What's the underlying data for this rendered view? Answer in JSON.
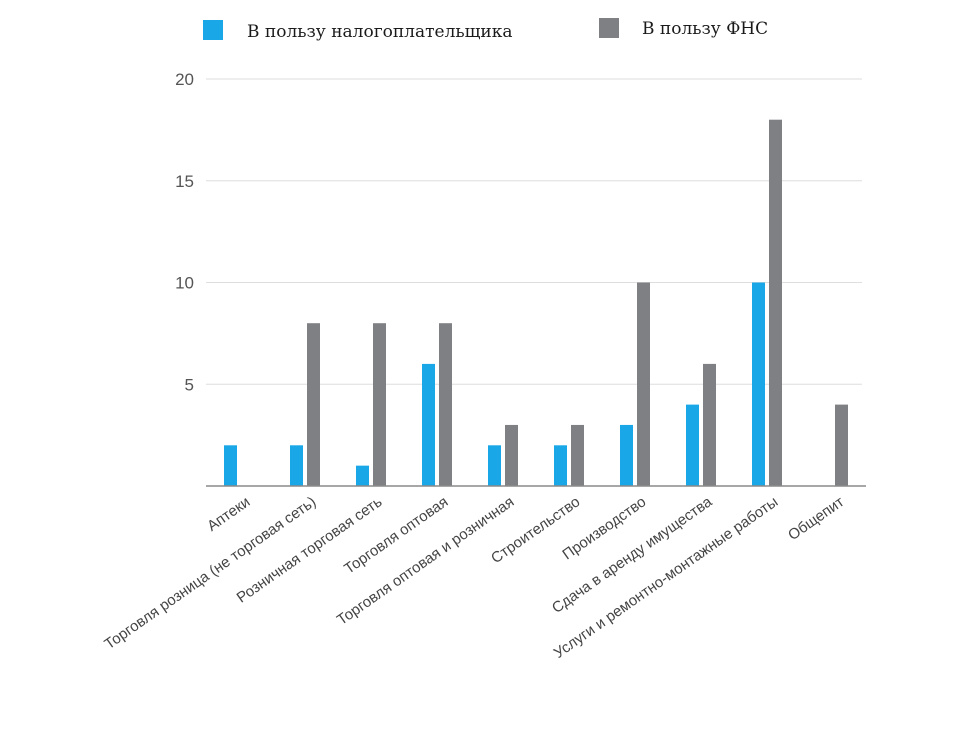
{
  "chart_data": {
    "type": "bar",
    "categories": [
      "Аптеки",
      "Торговля розница (не торговая сеть)",
      "Розничная торговая сеть",
      "Торговля оптовая",
      "Торговля оптовая и розничная",
      "Строительство",
      "Производство",
      "Сдача в аренду имущества",
      "Услуги и ремонтно-монтажные работы",
      "Общепит"
    ],
    "series": [
      {
        "name": "В пользу налогоплательщика",
        "color": "#1aa7e8",
        "values": [
          2,
          2,
          1,
          6,
          2,
          2,
          3,
          4,
          10,
          0
        ]
      },
      {
        "name": "В пользу ФНС",
        "color": "#7f8083",
        "values": [
          0,
          8,
          8,
          8,
          3,
          3,
          10,
          6,
          18,
          4
        ]
      }
    ],
    "yticks": [
      "5",
      "10",
      "15",
      "20"
    ],
    "ylim": [
      0,
      20
    ],
    "grid": true,
    "legend_position": "top"
  }
}
